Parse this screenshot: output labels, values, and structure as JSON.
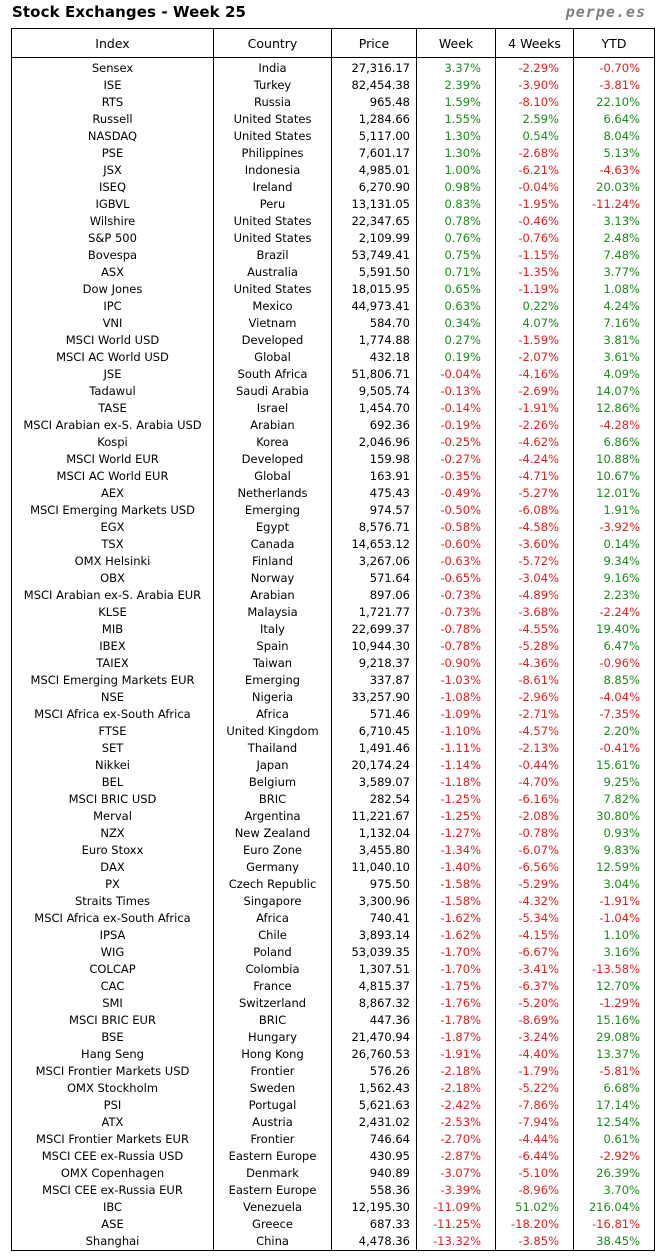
{
  "title": "Stock Exchanges - Week 25",
  "site": "perpe.es",
  "colors": {
    "positive": "#1a8c1a",
    "negative": "#e02020"
  },
  "columns": [
    "Index",
    "Country",
    "Price",
    "Week",
    "4 Weeks",
    "YTD"
  ],
  "rows": [
    [
      "Sensex",
      "India",
      "27,316.17",
      "3.37%",
      "-2.29%",
      "-0.70%"
    ],
    [
      "ISE",
      "Turkey",
      "82,454.38",
      "2.39%",
      "-3.90%",
      "-3.81%"
    ],
    [
      "RTS",
      "Russia",
      "965.48",
      "1.59%",
      "-8.10%",
      "22.10%"
    ],
    [
      "Russell",
      "United States",
      "1,284.66",
      "1.55%",
      "2.59%",
      "6.64%"
    ],
    [
      "NASDAQ",
      "United States",
      "5,117.00",
      "1.30%",
      "0.54%",
      "8.04%"
    ],
    [
      "PSE",
      "Philippines",
      "7,601.17",
      "1.30%",
      "-2.68%",
      "5.13%"
    ],
    [
      "JSX",
      "Indonesia",
      "4,985.01",
      "1.00%",
      "-6.21%",
      "-4.63%"
    ],
    [
      "ISEQ",
      "Ireland",
      "6,270.90",
      "0.98%",
      "-0.04%",
      "20.03%"
    ],
    [
      "IGBVL",
      "Peru",
      "13,131.05",
      "0.83%",
      "-1.95%",
      "-11.24%"
    ],
    [
      "Wilshire",
      "United States",
      "22,347.65",
      "0.78%",
      "-0.46%",
      "3.13%"
    ],
    [
      "S&P 500",
      "United States",
      "2,109.99",
      "0.76%",
      "-0.76%",
      "2.48%"
    ],
    [
      "Bovespa",
      "Brazil",
      "53,749.41",
      "0.75%",
      "-1.15%",
      "7.48%"
    ],
    [
      "ASX",
      "Australia",
      "5,591.50",
      "0.71%",
      "-1.35%",
      "3.77%"
    ],
    [
      "Dow Jones",
      "United States",
      "18,015.95",
      "0.65%",
      "-1.19%",
      "1.08%"
    ],
    [
      "IPC",
      "Mexico",
      "44,973.41",
      "0.63%",
      "0.22%",
      "4.24%"
    ],
    [
      "VNI",
      "Vietnam",
      "584.70",
      "0.34%",
      "4.07%",
      "7.16%"
    ],
    [
      "MSCI World USD",
      "Developed",
      "1,774.88",
      "0.27%",
      "-1.59%",
      "3.81%"
    ],
    [
      "MSCI AC World USD",
      "Global",
      "432.18",
      "0.19%",
      "-2.07%",
      "3.61%"
    ],
    [
      "JSE",
      "South Africa",
      "51,806.71",
      "-0.04%",
      "-4.16%",
      "4.09%"
    ],
    [
      "Tadawul",
      "Saudi Arabia",
      "9,505.74",
      "-0.13%",
      "-2.69%",
      "14.07%"
    ],
    [
      "TASE",
      "Israel",
      "1,454.70",
      "-0.14%",
      "-1.91%",
      "12.86%"
    ],
    [
      "MSCI Arabian ex-S. Arabia USD",
      "Arabian",
      "692.36",
      "-0.19%",
      "-2.26%",
      "-4.28%"
    ],
    [
      "Kospi",
      "Korea",
      "2,046.96",
      "-0.25%",
      "-4.62%",
      "6.86%"
    ],
    [
      "MSCI World EUR",
      "Developed",
      "159.98",
      "-0.27%",
      "-4.24%",
      "10.88%"
    ],
    [
      "MSCI AC World EUR",
      "Global",
      "163.91",
      "-0.35%",
      "-4.71%",
      "10.67%"
    ],
    [
      "AEX",
      "Netherlands",
      "475.43",
      "-0.49%",
      "-5.27%",
      "12.01%"
    ],
    [
      "MSCI Emerging Markets USD",
      "Emerging",
      "974.57",
      "-0.50%",
      "-6.08%",
      "1.91%"
    ],
    [
      "EGX",
      "Egypt",
      "8,576.71",
      "-0.58%",
      "-4.58%",
      "-3.92%"
    ],
    [
      "TSX",
      "Canada",
      "14,653.12",
      "-0.60%",
      "-3.60%",
      "0.14%"
    ],
    [
      "OMX Helsinki",
      "Finland",
      "3,267.06",
      "-0.63%",
      "-5.72%",
      "9.34%"
    ],
    [
      "OBX",
      "Norway",
      "571.64",
      "-0.65%",
      "-3.04%",
      "9.16%"
    ],
    [
      "MSCI Arabian ex-S. Arabia EUR",
      "Arabian",
      "897.06",
      "-0.73%",
      "-4.89%",
      "2.23%"
    ],
    [
      "KLSE",
      "Malaysia",
      "1,721.77",
      "-0.73%",
      "-3.68%",
      "-2.24%"
    ],
    [
      "MIB",
      "Italy",
      "22,699.37",
      "-0.78%",
      "-4.55%",
      "19.40%"
    ],
    [
      "IBEX",
      "Spain",
      "10,944.30",
      "-0.78%",
      "-5.28%",
      "6.47%"
    ],
    [
      "TAIEX",
      "Taiwan",
      "9,218.37",
      "-0.90%",
      "-4.36%",
      "-0.96%"
    ],
    [
      "MSCI Emerging Markets EUR",
      "Emerging",
      "337.87",
      "-1.03%",
      "-8.61%",
      "8.85%"
    ],
    [
      "NSE",
      "Nigeria",
      "33,257.90",
      "-1.08%",
      "-2.96%",
      "-4.04%"
    ],
    [
      "MSCI Africa ex-South Africa",
      "Africa",
      "571.46",
      "-1.09%",
      "-2.71%",
      "-7.35%"
    ],
    [
      "FTSE",
      "United Kingdom",
      "6,710.45",
      "-1.10%",
      "-4.57%",
      "2.20%"
    ],
    [
      "SET",
      "Thailand",
      "1,491.46",
      "-1.11%",
      "-2.13%",
      "-0.41%"
    ],
    [
      "Nikkei",
      "Japan",
      "20,174.24",
      "-1.14%",
      "-0.44%",
      "15.61%"
    ],
    [
      "BEL",
      "Belgium",
      "3,589.07",
      "-1.18%",
      "-4.70%",
      "9.25%"
    ],
    [
      "MSCI BRIC USD",
      "BRIC",
      "282.54",
      "-1.25%",
      "-6.16%",
      "7.82%"
    ],
    [
      "Merval",
      "Argentina",
      "11,221.67",
      "-1.25%",
      "-2.08%",
      "30.80%"
    ],
    [
      "NZX",
      "New Zealand",
      "1,132.04",
      "-1.27%",
      "-0.78%",
      "0.93%"
    ],
    [
      "Euro Stoxx",
      "Euro Zone",
      "3,455.80",
      "-1.34%",
      "-6.07%",
      "9.83%"
    ],
    [
      "DAX",
      "Germany",
      "11,040.10",
      "-1.40%",
      "-6.56%",
      "12.59%"
    ],
    [
      "PX",
      "Czech Republic",
      "975.50",
      "-1.58%",
      "-5.29%",
      "3.04%"
    ],
    [
      "Straits Times",
      "Singapore",
      "3,300.96",
      "-1.58%",
      "-4.32%",
      "-1.91%"
    ],
    [
      "MSCI Africa ex-South Africa",
      "Africa",
      "740.41",
      "-1.62%",
      "-5.34%",
      "-1.04%"
    ],
    [
      "IPSA",
      "Chile",
      "3,893.14",
      "-1.62%",
      "-4.15%",
      "1.10%"
    ],
    [
      "WIG",
      "Poland",
      "53,039.35",
      "-1.70%",
      "-6.67%",
      "3.16%"
    ],
    [
      "COLCAP",
      "Colombia",
      "1,307.51",
      "-1.70%",
      "-3.41%",
      "-13.58%"
    ],
    [
      "CAC",
      "France",
      "4,815.37",
      "-1.75%",
      "-6.37%",
      "12.70%"
    ],
    [
      "SMI",
      "Switzerland",
      "8,867.32",
      "-1.76%",
      "-5.20%",
      "-1.29%"
    ],
    [
      "MSCI BRIC EUR",
      "BRIC",
      "447.36",
      "-1.78%",
      "-8.69%",
      "15.16%"
    ],
    [
      "BSE",
      "Hungary",
      "21,470.94",
      "-1.87%",
      "-3.24%",
      "29.08%"
    ],
    [
      "Hang Seng",
      "Hong Kong",
      "26,760.53",
      "-1.91%",
      "-4.40%",
      "13.37%"
    ],
    [
      "MSCI Frontier Markets USD",
      "Frontier",
      "576.26",
      "-2.18%",
      "-1.79%",
      "-5.81%"
    ],
    [
      "OMX Stockholm",
      "Sweden",
      "1,562.43",
      "-2.18%",
      "-5.22%",
      "6.68%"
    ],
    [
      "PSI",
      "Portugal",
      "5,621.63",
      "-2.42%",
      "-7.86%",
      "17.14%"
    ],
    [
      "ATX",
      "Austria",
      "2,431.02",
      "-2.53%",
      "-7.94%",
      "12.54%"
    ],
    [
      "MSCI Frontier Markets EUR",
      "Frontier",
      "746.64",
      "-2.70%",
      "-4.44%",
      "0.61%"
    ],
    [
      "MSCI CEE ex-Russia USD",
      "Eastern Europe",
      "430.95",
      "-2.87%",
      "-6.44%",
      "-2.92%"
    ],
    [
      "OMX Copenhagen",
      "Denmark",
      "940.89",
      "-3.07%",
      "-5.10%",
      "26.39%"
    ],
    [
      "MSCI CEE ex-Russia EUR",
      "Eastern Europe",
      "558.36",
      "-3.39%",
      "-8.96%",
      "3.70%"
    ],
    [
      "IBC",
      "Venezuela",
      "12,195.30",
      "-11.09%",
      "51.02%",
      "216.04%"
    ],
    [
      "ASE",
      "Greece",
      "687.33",
      "-11.25%",
      "-18.20%",
      "-16.81%"
    ],
    [
      "Shanghai",
      "China",
      "4,478.36",
      "-13.32%",
      "-3.85%",
      "38.45%"
    ]
  ]
}
